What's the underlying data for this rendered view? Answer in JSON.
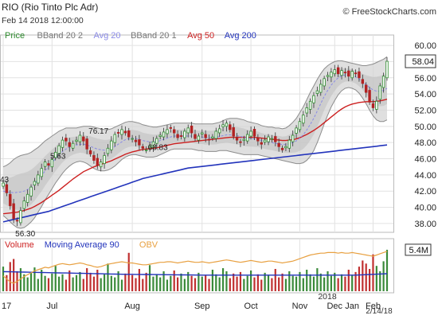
{
  "header": {
    "title": "RIO (Rio Tinto Plc Adr)",
    "date_line": "Feb 14 2018 12:00:00",
    "watermark": "© FreeStockCharts.com"
  },
  "colors": {
    "price_up": "#2e8b2e",
    "price_down": "#b22222",
    "bband": "#8c8c8c",
    "bband_fill": "#d4d4d4",
    "avg20": "#8a8ae6",
    "avg50": "#cc1f1f",
    "avg200": "#2233bb",
    "volume": "#3a8a3a",
    "volume_down": "#c03030",
    "ma90": "#2233bb",
    "obv": "#e8a040",
    "grid": "#e2e2e2"
  },
  "legend": [
    {
      "label": "Price",
      "color": "#2e8b2e"
    },
    {
      "label": "BBand 20 2",
      "color": "#777777"
    },
    {
      "label": "Avg 20",
      "color": "#8a8ae6"
    },
    {
      "label": "BBand 20 1",
      "color": "#777777"
    },
    {
      "label": "Avg 50",
      "color": "#cc1f1f"
    },
    {
      "label": "Avg 200",
      "color": "#2233bb"
    }
  ],
  "volume_legend": [
    {
      "label": "Volume",
      "color": "#cc1f1f"
    },
    {
      "label": "Moving Average 90",
      "color": "#2233bb"
    },
    {
      "label": "OBV",
      "color": "#e8a040"
    }
  ],
  "chart_data": {
    "type": "candlestick",
    "title": "RIO (Rio Tinto Plc Adr)",
    "price_axis": {
      "ylim": [
        37.5,
        60.5
      ],
      "ticks": [
        38,
        40,
        42,
        44,
        46,
        48,
        50,
        52,
        54,
        56,
        58,
        60
      ]
    },
    "last_price_label": "58.04",
    "volume_axis_label": "5.4M",
    "x_labels": [
      "17",
      "Jul",
      "Aug",
      "Sep",
      "Oct",
      "Nov",
      "Dec",
      "Jan",
      "Feb"
    ],
    "year_label": "2018",
    "last_date_label": "2/14/18",
    "annotations": [
      {
        "text": "56.30",
        "x": 3,
        "y": 37.6
      },
      {
        "text": "43",
        "x": 0,
        "y": 42.9
      },
      {
        "text": "5.63",
        "x": 13,
        "y": 45.8
      },
      {
        "text": "76.17",
        "x": 24,
        "y": 48.9
      },
      {
        "text": "68.83",
        "x": 41,
        "y": 46.9
      }
    ],
    "closes": [
      43.0,
      41.8,
      40.2,
      38.6,
      38.3,
      39.6,
      40.8,
      41.6,
      42.5,
      43.2,
      44.0,
      44.8,
      45.6,
      45.2,
      45.9,
      46.8,
      47.6,
      48.3,
      48.2,
      47.5,
      47.9,
      48.3,
      48.9,
      48.2,
      47.2,
      46.6,
      45.8,
      45.2,
      45.6,
      46.4,
      47.3,
      48.2,
      49.0,
      49.2,
      49.6,
      49.2,
      48.7,
      48.5,
      48.1,
      47.7,
      47.3,
      47.1,
      47.6,
      48.1,
      48.5,
      48.9,
      49.3,
      49.6,
      49.8,
      49.2,
      48.6,
      48.8,
      49.4,
      49.8,
      49.2,
      48.5,
      48.8,
      49.2,
      48.6,
      48.3,
      48.7,
      49.4,
      49.7,
      50.2,
      50.4,
      49.6,
      48.8,
      48.3,
      48.0,
      48.4,
      49.0,
      49.4,
      48.8,
      48.2,
      47.8,
      48.3,
      48.7,
      48.5,
      48.1,
      47.5,
      47.1,
      47.5,
      48.3,
      48.9,
      49.8,
      50.6,
      51.4,
      52.3,
      53.1,
      53.8,
      54.4,
      55.2,
      55.9,
      56.3,
      56.7,
      57.0,
      56.5,
      56.9,
      56.6,
      56.2,
      56.8,
      56.5,
      56.0,
      55.3,
      54.2,
      53.0,
      52.3,
      53.1,
      55.0,
      56.2,
      58.04
    ],
    "bb2_upper": [
      45.0,
      45.2,
      45.5,
      45.9,
      46.2,
      46.4,
      46.5,
      46.6,
      46.8,
      47.1,
      47.4,
      47.8,
      48.2,
      48.5,
      48.8,
      49.1,
      49.4,
      49.6,
      49.8,
      49.8,
      49.8,
      49.8,
      49.9,
      50.0,
      50.0,
      50.0,
      49.9,
      49.8,
      49.7,
      49.6,
      49.6,
      49.7,
      49.9,
      50.1,
      50.3,
      50.5,
      50.6,
      50.6,
      50.5,
      50.4,
      50.2,
      50.1,
      50.0,
      49.9,
      49.9,
      50.0,
      50.1,
      50.2,
      50.3,
      50.4,
      50.4,
      50.4,
      50.4,
      50.4,
      50.4,
      50.3,
      50.3,
      50.3,
      50.3,
      50.3,
      50.3,
      50.4,
      50.5,
      50.7,
      50.9,
      51.0,
      51.0,
      51.0,
      50.9,
      50.8,
      50.6,
      50.5,
      50.4,
      50.3,
      50.1,
      50.0,
      49.9,
      49.9,
      49.8,
      49.8,
      49.7,
      49.8,
      50.1,
      50.5,
      51.0,
      51.7,
      52.4,
      53.3,
      54.2,
      55.0,
      55.8,
      56.5,
      57.1,
      57.5,
      57.8,
      58.0,
      58.1,
      58.1,
      58.0,
      57.9,
      57.8,
      57.7,
      57.6,
      57.5,
      57.5,
      57.6,
      57.7,
      57.9,
      58.1,
      58.3,
      58.6
    ],
    "bb2_lower": [
      39.0,
      38.6,
      38.2,
      37.8,
      37.5,
      37.4,
      37.5,
      37.8,
      38.2,
      38.7,
      39.4,
      40.1,
      40.9,
      41.6,
      42.3,
      43.0,
      43.6,
      44.2,
      44.7,
      45.1,
      45.4,
      45.6,
      45.7,
      45.6,
      45.4,
      45.1,
      44.8,
      44.6,
      44.5,
      44.5,
      44.6,
      44.8,
      45.1,
      45.5,
      45.9,
      46.2,
      46.4,
      46.5,
      46.5,
      46.4,
      46.3,
      46.2,
      46.2,
      46.2,
      46.3,
      46.5,
      46.7,
      46.9,
      47.1,
      47.2,
      47.2,
      47.2,
      47.2,
      47.2,
      47.2,
      47.1,
      47.0,
      47.0,
      46.9,
      46.9,
      46.9,
      46.9,
      47.0,
      47.0,
      47.0,
      46.9,
      46.8,
      46.7,
      46.6,
      46.5,
      46.5,
      46.5,
      46.5,
      46.5,
      46.4,
      46.3,
      46.2,
      46.1,
      46.0,
      45.9,
      45.8,
      45.7,
      45.6,
      45.5,
      45.4,
      45.4,
      45.5,
      45.8,
      46.3,
      47.0,
      48.0,
      49.1,
      50.3,
      51.4,
      52.4,
      53.2,
      53.9,
      54.4,
      54.7,
      54.8,
      54.7,
      54.5,
      54.1,
      53.5,
      52.8,
      52.0,
      51.3,
      50.8,
      50.6,
      50.6,
      50.8
    ],
    "avg20": [
      42.0,
      41.9,
      41.85,
      41.8,
      41.85,
      41.9,
      42.0,
      42.2,
      42.5,
      42.9,
      43.4,
      43.9,
      44.5,
      45.0,
      45.5,
      46.0,
      46.5,
      46.9,
      47.2,
      47.45,
      47.6,
      47.7,
      47.8,
      47.8,
      47.7,
      47.55,
      47.35,
      47.2,
      47.1,
      47.05,
      47.1,
      47.25,
      47.5,
      47.8,
      48.1,
      48.35,
      48.5,
      48.55,
      48.5,
      48.4,
      48.25,
      48.15,
      48.1,
      48.05,
      48.1,
      48.25,
      48.4,
      48.55,
      48.7,
      48.8,
      48.8,
      48.8,
      48.8,
      48.8,
      48.8,
      48.7,
      48.65,
      48.65,
      48.6,
      48.6,
      48.6,
      48.65,
      48.75,
      48.85,
      48.95,
      48.95,
      48.9,
      48.85,
      48.75,
      48.65,
      48.55,
      48.5,
      48.45,
      48.4,
      48.25,
      48.15,
      48.05,
      48.0,
      47.9,
      47.85,
      47.75,
      47.75,
      47.85,
      48.0,
      48.2,
      48.55,
      48.95,
      49.55,
      50.25,
      51.0,
      51.9,
      52.8,
      53.7,
      54.45,
      55.1,
      55.6,
      56.0,
      56.25,
      56.35,
      56.35,
      56.25,
      56.1,
      55.85,
      55.5,
      55.15,
      54.8,
      54.5,
      54.35,
      54.35,
      54.45,
      54.7
    ],
    "avg50": [
      39.2,
      39.25,
      39.3,
      39.35,
      39.4,
      39.5,
      39.6,
      39.75,
      39.9,
      40.1,
      40.35,
      40.6,
      40.9,
      41.2,
      41.5,
      41.8,
      42.1,
      42.45,
      42.8,
      43.15,
      43.5,
      43.8,
      44.1,
      44.4,
      44.6,
      44.8,
      45.0,
      45.15,
      45.3,
      45.45,
      45.6,
      45.75,
      45.95,
      46.15,
      46.35,
      46.55,
      46.7,
      46.85,
      46.95,
      47.05,
      47.15,
      47.2,
      47.25,
      47.3,
      47.35,
      47.45,
      47.55,
      47.65,
      47.75,
      47.85,
      47.9,
      47.95,
      48.0,
      48.05,
      48.1,
      48.15,
      48.2,
      48.25,
      48.3,
      48.35,
      48.4,
      48.45,
      48.5,
      48.55,
      48.6,
      48.65,
      48.65,
      48.65,
      48.65,
      48.65,
      48.65,
      48.65,
      48.65,
      48.6,
      48.55,
      48.5,
      48.45,
      48.4,
      48.35,
      48.3,
      48.25,
      48.25,
      48.3,
      48.35,
      48.45,
      48.6,
      48.8,
      49.0,
      49.25,
      49.5,
      49.8,
      50.1,
      50.45,
      50.8,
      51.15,
      51.5,
      51.85,
      52.15,
      52.4,
      52.6,
      52.75,
      52.85,
      52.95,
      53.0,
      53.05,
      53.05,
      53.05,
      53.1,
      53.15,
      53.25,
      53.35
    ],
    "avg200": [
      38.2,
      38.3,
      38.4,
      38.5,
      38.6,
      38.7,
      38.8,
      38.9,
      39.0,
      39.1,
      39.2,
      39.3,
      39.4,
      39.5,
      39.65,
      39.8,
      39.95,
      40.1,
      40.25,
      40.4,
      40.55,
      40.7,
      40.85,
      41.0,
      41.15,
      41.3,
      41.45,
      41.6,
      41.75,
      41.9,
      42.05,
      42.2,
      42.35,
      42.5,
      42.65,
      42.8,
      42.95,
      43.1,
      43.25,
      43.4,
      43.55,
      43.65,
      43.75,
      43.85,
      43.95,
      44.05,
      44.15,
      44.25,
      44.35,
      44.45,
      44.55,
      44.65,
      44.75,
      44.85,
      44.9,
      44.95,
      45.0,
      45.05,
      45.1,
      45.15,
      45.2,
      45.25,
      45.3,
      45.35,
      45.4,
      45.45,
      45.5,
      45.55,
      45.6,
      45.65,
      45.7,
      45.75,
      45.8,
      45.85,
      45.9,
      45.95,
      46.0,
      46.05,
      46.1,
      46.15,
      46.2,
      46.25,
      46.3,
      46.35,
      46.4,
      46.45,
      46.5,
      46.55,
      46.6,
      46.65,
      46.7,
      46.75,
      46.8,
      46.85,
      46.9,
      46.95,
      47.0,
      47.05,
      47.1,
      47.15,
      47.2,
      47.25,
      47.3,
      47.35,
      47.4,
      47.45,
      47.5,
      47.55,
      47.6,
      47.65,
      47.7
    ],
    "volume": [
      3.2,
      2.1,
      3.8,
      4.2,
      2.6,
      3.0,
      2.2,
      1.8,
      2.4,
      3.1,
      1.6,
      2.8,
      2.0,
      1.7,
      2.3,
      3.3,
      1.9,
      2.2,
      1.5,
      2.7,
      1.8,
      2.1,
      2.5,
      1.6,
      3.0,
      2.4,
      1.9,
      2.8,
      1.7,
      2.2,
      3.6,
      2.0,
      1.8,
      2.6,
      1.5,
      2.3,
      5.0,
      2.1,
      1.7,
      2.9,
      1.6,
      2.4,
      3.4,
      1.9,
      2.2,
      1.8,
      2.6,
      1.5,
      2.0,
      2.7,
      1.8,
      2.3,
      1.6,
      2.5,
      2.0,
      1.7,
      2.4,
      1.9,
      2.1,
      1.6,
      2.8,
      2.2,
      1.8,
      3.0,
      2.6,
      1.7,
      2.3,
      1.9,
      2.5,
      1.6,
      2.0,
      2.7,
      1.8,
      2.2,
      1.5,
      2.4,
      2.1,
      1.7,
      2.9,
      1.8,
      2.3,
      1.6,
      2.6,
      2.0,
      1.9,
      2.5,
      1.7,
      2.8,
      2.2,
      1.9,
      3.0,
      2.3,
      1.8,
      2.6,
      2.0,
      2.4,
      1.7,
      2.2,
      1.9,
      2.8,
      2.1,
      2.5,
      3.2,
      4.0,
      3.6,
      2.9,
      4.8,
      3.3,
      2.6,
      3.9,
      5.4
    ],
    "ma90": [
      2.55,
      2.54,
      2.53,
      2.52,
      2.51,
      2.5,
      2.49,
      2.48,
      2.47,
      2.46,
      2.45,
      2.44,
      2.43,
      2.42,
      2.41,
      2.4,
      2.39,
      2.38,
      2.37,
      2.36,
      2.35,
      2.34,
      2.33,
      2.32,
      2.31,
      2.3,
      2.29,
      2.28,
      2.27,
      2.26,
      2.25,
      2.24,
      2.23,
      2.22,
      2.21,
      2.2,
      2.2,
      2.2,
      2.19,
      2.19,
      2.18,
      2.18,
      2.18,
      2.17,
      2.17,
      2.16,
      2.16,
      2.15,
      2.15,
      2.14,
      2.14,
      2.13,
      2.13,
      2.12,
      2.12,
      2.11,
      2.11,
      2.1,
      2.1,
      2.1,
      2.1,
      2.1,
      2.1,
      2.1,
      2.1,
      2.1,
      2.1,
      2.1,
      2.1,
      2.1,
      2.1,
      2.1,
      2.1,
      2.1,
      2.1,
      2.1,
      2.1,
      2.1,
      2.1,
      2.1,
      2.1,
      2.1,
      2.1,
      2.1,
      2.1,
      2.1,
      2.1,
      2.1,
      2.1,
      2.1,
      2.1,
      2.1,
      2.1,
      2.1,
      2.1,
      2.1,
      2.1,
      2.1,
      2.1,
      2.1,
      2.1,
      2.1,
      2.12,
      2.14,
      2.16,
      2.18,
      2.2,
      2.22,
      2.24,
      2.26,
      2.28
    ],
    "obv": [
      2.5,
      2.0,
      1.5,
      1.3,
      1.6,
      2.0,
      2.4,
      2.7,
      3.0,
      3.3,
      3.5,
      3.7,
      3.9,
      3.8,
      4.0,
      4.2,
      4.4,
      4.5,
      4.4,
      4.3,
      4.4,
      4.5,
      4.6,
      4.5,
      4.3,
      4.2,
      4.0,
      3.9,
      4.0,
      4.2,
      4.4,
      4.5,
      4.6,
      4.7,
      4.8,
      4.7,
      4.6,
      4.6,
      4.5,
      4.4,
      4.3,
      4.3,
      4.4,
      4.5,
      4.6,
      4.7,
      4.7,
      4.8,
      4.8,
      4.7,
      4.6,
      4.7,
      4.8,
      4.9,
      4.8,
      4.7,
      4.7,
      4.8,
      4.7,
      4.6,
      4.7,
      4.8,
      4.9,
      5.0,
      5.1,
      5.0,
      4.9,
      4.8,
      4.7,
      4.8,
      4.9,
      5.0,
      4.9,
      4.8,
      4.7,
      4.8,
      4.9,
      4.9,
      4.8,
      4.7,
      4.6,
      4.7,
      4.8,
      4.9,
      5.1,
      5.3,
      5.5,
      5.7,
      5.9,
      6.0,
      6.1,
      6.2,
      6.2,
      6.3,
      6.3,
      6.3,
      6.2,
      6.3,
      6.2,
      6.2,
      6.3,
      6.2,
      6.1,
      6.0,
      5.9,
      5.8,
      5.7,
      5.9,
      6.1,
      6.3,
      6.5
    ]
  }
}
